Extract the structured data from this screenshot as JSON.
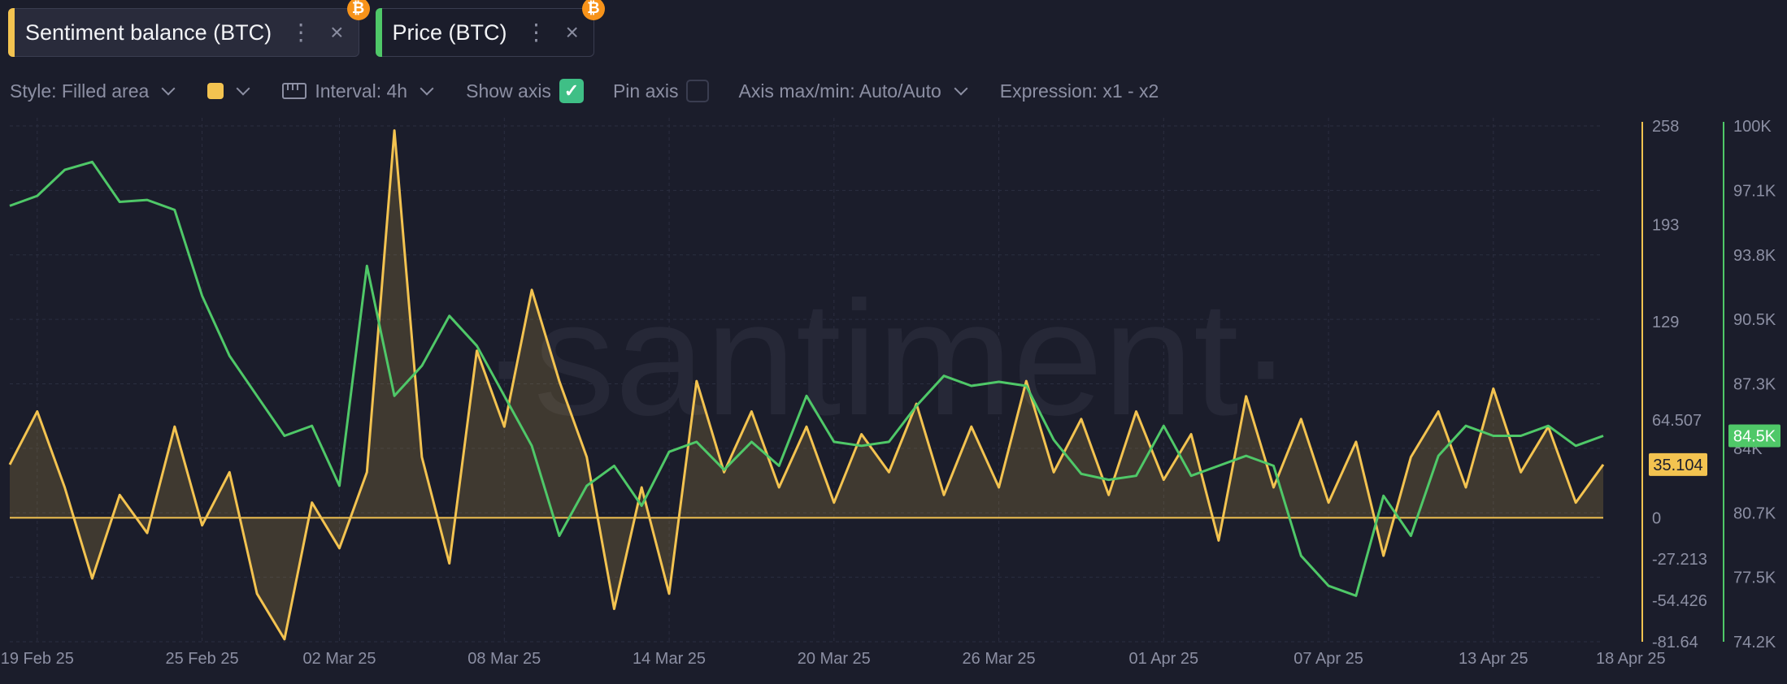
{
  "tabs": [
    {
      "label": "Sentiment balance (BTC)",
      "color": "#f3c350",
      "badge": "₿",
      "dots": "⋮",
      "close": "×"
    },
    {
      "label": "Price (BTC)",
      "color": "#4fc868",
      "badge": "₿",
      "dots": "⋮",
      "close": "×"
    }
  ],
  "toolbar": {
    "style": "Style: Filled area",
    "color_swatch": "#f3c350",
    "interval": "Interval: 4h",
    "show_axis": "Show axis",
    "show_axis_checked": true,
    "pin_axis": "Pin axis",
    "pin_axis_checked": false,
    "axis_maxmin": "Axis max/min: Auto/Auto",
    "expression": "Expression: x1 - x2"
  },
  "watermark": "·santiment·",
  "chart_data": {
    "type": "line",
    "x": [
      "19 Feb 25",
      "25 Feb 25",
      "02 Mar 25",
      "08 Mar 25",
      "14 Mar 25",
      "20 Mar 25",
      "26 Mar 25",
      "01 Apr 25",
      "07 Apr 25",
      "13 Apr 25",
      "18 Apr 25"
    ],
    "xlim": [
      "2025-02-18",
      "2025-04-17"
    ],
    "series": [
      {
        "name": "Sentiment balance (BTC)",
        "color": "#f3c350",
        "style": "filled area",
        "axis": "left-yellow",
        "last_value_label": "35.104",
        "points": [
          [
            "2025-02-18",
            35
          ],
          [
            "2025-02-19",
            70
          ],
          [
            "2025-02-20",
            20
          ],
          [
            "2025-02-21",
            -40
          ],
          [
            "2025-02-22",
            15
          ],
          [
            "2025-02-23",
            -10
          ],
          [
            "2025-02-24",
            60
          ],
          [
            "2025-02-25",
            -5
          ],
          [
            "2025-02-26",
            30
          ],
          [
            "2025-02-27",
            -50
          ],
          [
            "2025-02-28",
            -80
          ],
          [
            "2025-03-01",
            10
          ],
          [
            "2025-03-02",
            -20
          ],
          [
            "2025-03-03",
            30
          ],
          [
            "2025-03-04",
            255
          ],
          [
            "2025-03-05",
            40
          ],
          [
            "2025-03-06",
            -30
          ],
          [
            "2025-03-07",
            110
          ],
          [
            "2025-03-08",
            60
          ],
          [
            "2025-03-09",
            150
          ],
          [
            "2025-03-10",
            90
          ],
          [
            "2025-03-11",
            40
          ],
          [
            "2025-03-12",
            -60
          ],
          [
            "2025-03-13",
            20
          ],
          [
            "2025-03-14",
            -50
          ],
          [
            "2025-03-15",
            90
          ],
          [
            "2025-03-16",
            30
          ],
          [
            "2025-03-17",
            70
          ],
          [
            "2025-03-18",
            20
          ],
          [
            "2025-03-19",
            60
          ],
          [
            "2025-03-20",
            10
          ],
          [
            "2025-03-21",
            55
          ],
          [
            "2025-03-22",
            30
          ],
          [
            "2025-03-23",
            75
          ],
          [
            "2025-03-24",
            15
          ],
          [
            "2025-03-25",
            60
          ],
          [
            "2025-03-26",
            20
          ],
          [
            "2025-03-27",
            90
          ],
          [
            "2025-03-28",
            30
          ],
          [
            "2025-03-29",
            65
          ],
          [
            "2025-03-30",
            15
          ],
          [
            "2025-03-31",
            70
          ],
          [
            "2025-04-01",
            25
          ],
          [
            "2025-04-02",
            55
          ],
          [
            "2025-04-03",
            -15
          ],
          [
            "2025-04-04",
            80
          ],
          [
            "2025-04-05",
            20
          ],
          [
            "2025-04-06",
            65
          ],
          [
            "2025-04-07",
            10
          ],
          [
            "2025-04-08",
            50
          ],
          [
            "2025-04-09",
            -25
          ],
          [
            "2025-04-10",
            40
          ],
          [
            "2025-04-11",
            70
          ],
          [
            "2025-04-12",
            20
          ],
          [
            "2025-04-13",
            85
          ],
          [
            "2025-04-14",
            30
          ],
          [
            "2025-04-15",
            60
          ],
          [
            "2025-04-16",
            10
          ],
          [
            "2025-04-17",
            35
          ]
        ]
      },
      {
        "name": "Price (BTC)",
        "color": "#4fc868",
        "style": "line",
        "axis": "right-green",
        "last_value_label": "84.5K",
        "points": [
          [
            "2025-02-18",
            96000
          ],
          [
            "2025-02-19",
            96500
          ],
          [
            "2025-02-20",
            97800
          ],
          [
            "2025-02-21",
            98200
          ],
          [
            "2025-02-22",
            96200
          ],
          [
            "2025-02-23",
            96300
          ],
          [
            "2025-02-24",
            95800
          ],
          [
            "2025-02-25",
            91500
          ],
          [
            "2025-02-26",
            88500
          ],
          [
            "2025-02-27",
            86500
          ],
          [
            "2025-02-28",
            84500
          ],
          [
            "2025-03-01",
            85000
          ],
          [
            "2025-03-02",
            82000
          ],
          [
            "2025-03-03",
            93000
          ],
          [
            "2025-03-04",
            86500
          ],
          [
            "2025-03-05",
            88000
          ],
          [
            "2025-03-06",
            90500
          ],
          [
            "2025-03-07",
            89000
          ],
          [
            "2025-03-08",
            86500
          ],
          [
            "2025-03-09",
            84000
          ],
          [
            "2025-03-10",
            79500
          ],
          [
            "2025-03-11",
            82000
          ],
          [
            "2025-03-12",
            83000
          ],
          [
            "2025-03-13",
            81000
          ],
          [
            "2025-03-14",
            83700
          ],
          [
            "2025-03-15",
            84200
          ],
          [
            "2025-03-16",
            82800
          ],
          [
            "2025-03-17",
            84200
          ],
          [
            "2025-03-18",
            83000
          ],
          [
            "2025-03-19",
            86500
          ],
          [
            "2025-03-20",
            84200
          ],
          [
            "2025-03-21",
            84000
          ],
          [
            "2025-03-22",
            84200
          ],
          [
            "2025-03-23",
            86000
          ],
          [
            "2025-03-24",
            87500
          ],
          [
            "2025-03-25",
            87000
          ],
          [
            "2025-03-26",
            87200
          ],
          [
            "2025-03-27",
            87000
          ],
          [
            "2025-03-28",
            84300
          ],
          [
            "2025-03-29",
            82600
          ],
          [
            "2025-03-30",
            82300
          ],
          [
            "2025-03-31",
            82500
          ],
          [
            "2025-04-01",
            85000
          ],
          [
            "2025-04-02",
            82500
          ],
          [
            "2025-04-03",
            83000
          ],
          [
            "2025-04-04",
            83500
          ],
          [
            "2025-04-05",
            83000
          ],
          [
            "2025-04-06",
            78500
          ],
          [
            "2025-04-07",
            77000
          ],
          [
            "2025-04-08",
            76500
          ],
          [
            "2025-04-09",
            81500
          ],
          [
            "2025-04-10",
            79500
          ],
          [
            "2025-04-11",
            83500
          ],
          [
            "2025-04-12",
            85000
          ],
          [
            "2025-04-13",
            84500
          ],
          [
            "2025-04-14",
            84500
          ],
          [
            "2025-04-15",
            85000
          ],
          [
            "2025-04-16",
            84000
          ],
          [
            "2025-04-17",
            84500
          ]
        ]
      }
    ],
    "y_left": {
      "ticks": [
        "258",
        "193",
        "129",
        "64.507",
        "0",
        "-27.213",
        "-54.426",
        "-81.64"
      ],
      "lim": [
        -81.64,
        258
      ]
    },
    "y_right": {
      "ticks": [
        "100K",
        "97.1K",
        "93.8K",
        "90.5K",
        "87.3K",
        "84K",
        "80.7K",
        "77.5K",
        "74.2K"
      ],
      "lim": [
        74200,
        100000
      ]
    },
    "grid": true,
    "title": "",
    "xlabel": "",
    "ylabel": ""
  }
}
